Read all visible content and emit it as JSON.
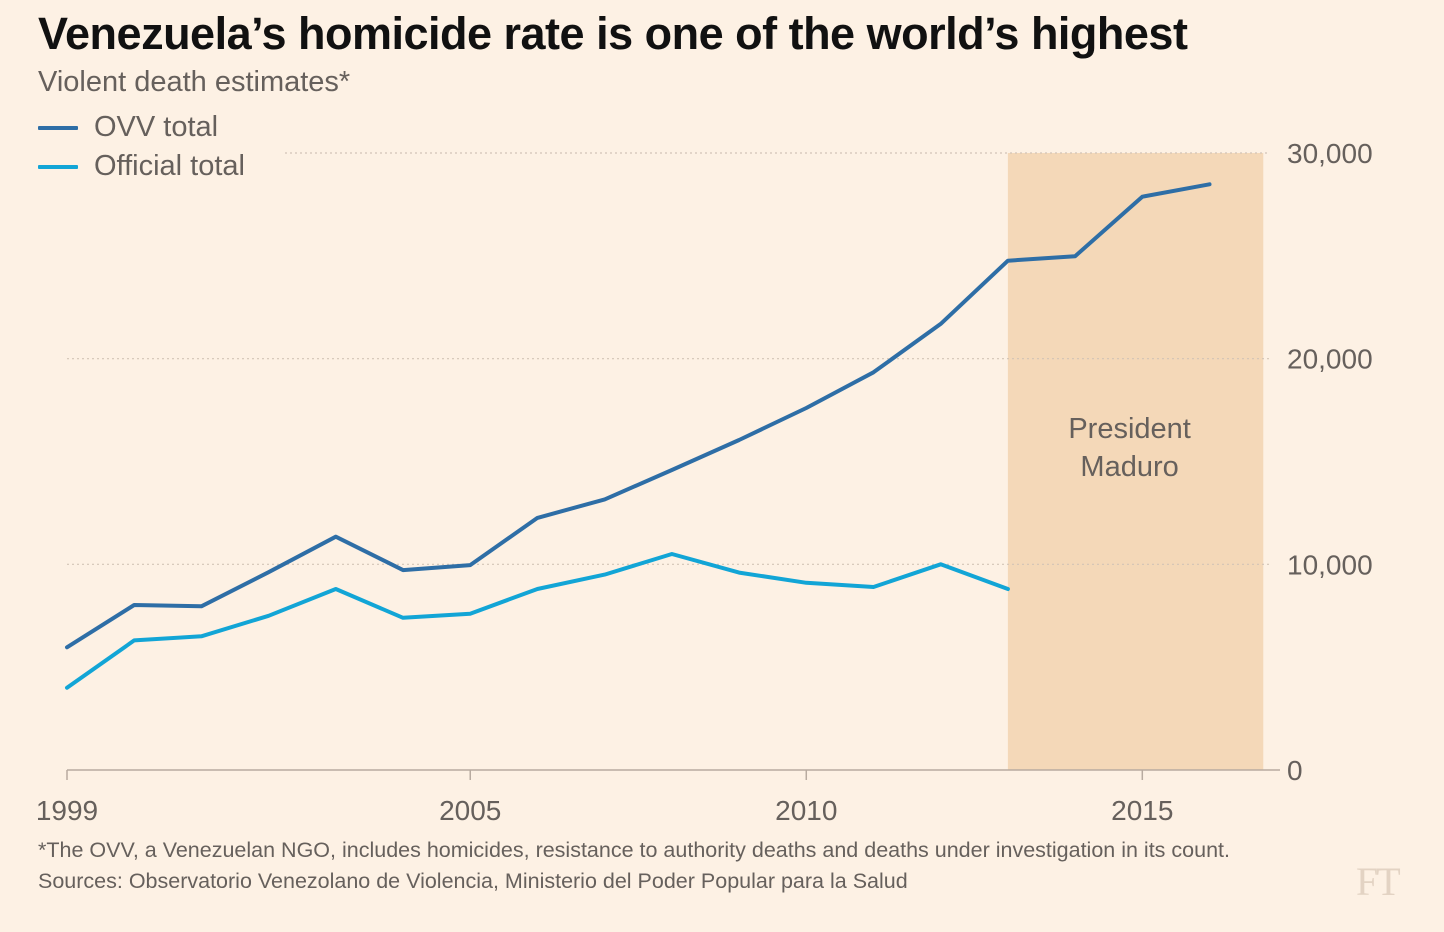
{
  "chart_data": {
    "type": "line",
    "title": "Venezuela’s homicide rate is one of the world’s highest",
    "subtitle": "Violent death estimates*",
    "x": [
      1999,
      2000,
      2001,
      2002,
      2003,
      2004,
      2005,
      2006,
      2007,
      2008,
      2009,
      2010,
      2011,
      2012,
      2013,
      2014,
      2015,
      2016
    ],
    "series": [
      {
        "name": "OVV total",
        "color": "#2e6ea6",
        "values": [
          5968,
          8022,
          7960,
          9617,
          11342,
          9719,
          9964,
          12257,
          13156,
          14589,
          16047,
          17600,
          19336,
          21692,
          24763,
          24980,
          27875,
          28479
        ]
      },
      {
        "name": "Official total",
        "color": "#12a5d6",
        "values": [
          4000,
          6300,
          6500,
          7500,
          8800,
          7400,
          7600,
          8800,
          9500,
          10500,
          9600,
          9100,
          8900,
          10000,
          8800,
          null,
          null,
          null
        ]
      }
    ],
    "xticks": [
      1999,
      2005,
      2010,
      2015
    ],
    "xtick_labels": [
      "1999",
      "2005",
      "2010",
      "2015"
    ],
    "yticks": [
      0,
      10000,
      20000,
      30000
    ],
    "ytick_labels": [
      "0",
      "10,000",
      "20,000",
      "30,000"
    ],
    "ylim": [
      0,
      30000
    ],
    "xlim": [
      1999,
      2016.9
    ],
    "y_axis_side": "right",
    "grid": true,
    "shaded_region": {
      "label_lines": [
        "President",
        "Maduro"
      ],
      "x_start": 2013,
      "x_end": 2016.8,
      "color": "#f4d8b8"
    },
    "legend_position": "top-left"
  },
  "footnote": "*The OVV, a Venezuelan NGO, includes homicides, resistance to authority deaths and deaths under investigation in its count.",
  "source": "Sources: Observatorio Venezolano de Violencia, Ministerio del Poder Popular para la Salud",
  "logo": "FT"
}
